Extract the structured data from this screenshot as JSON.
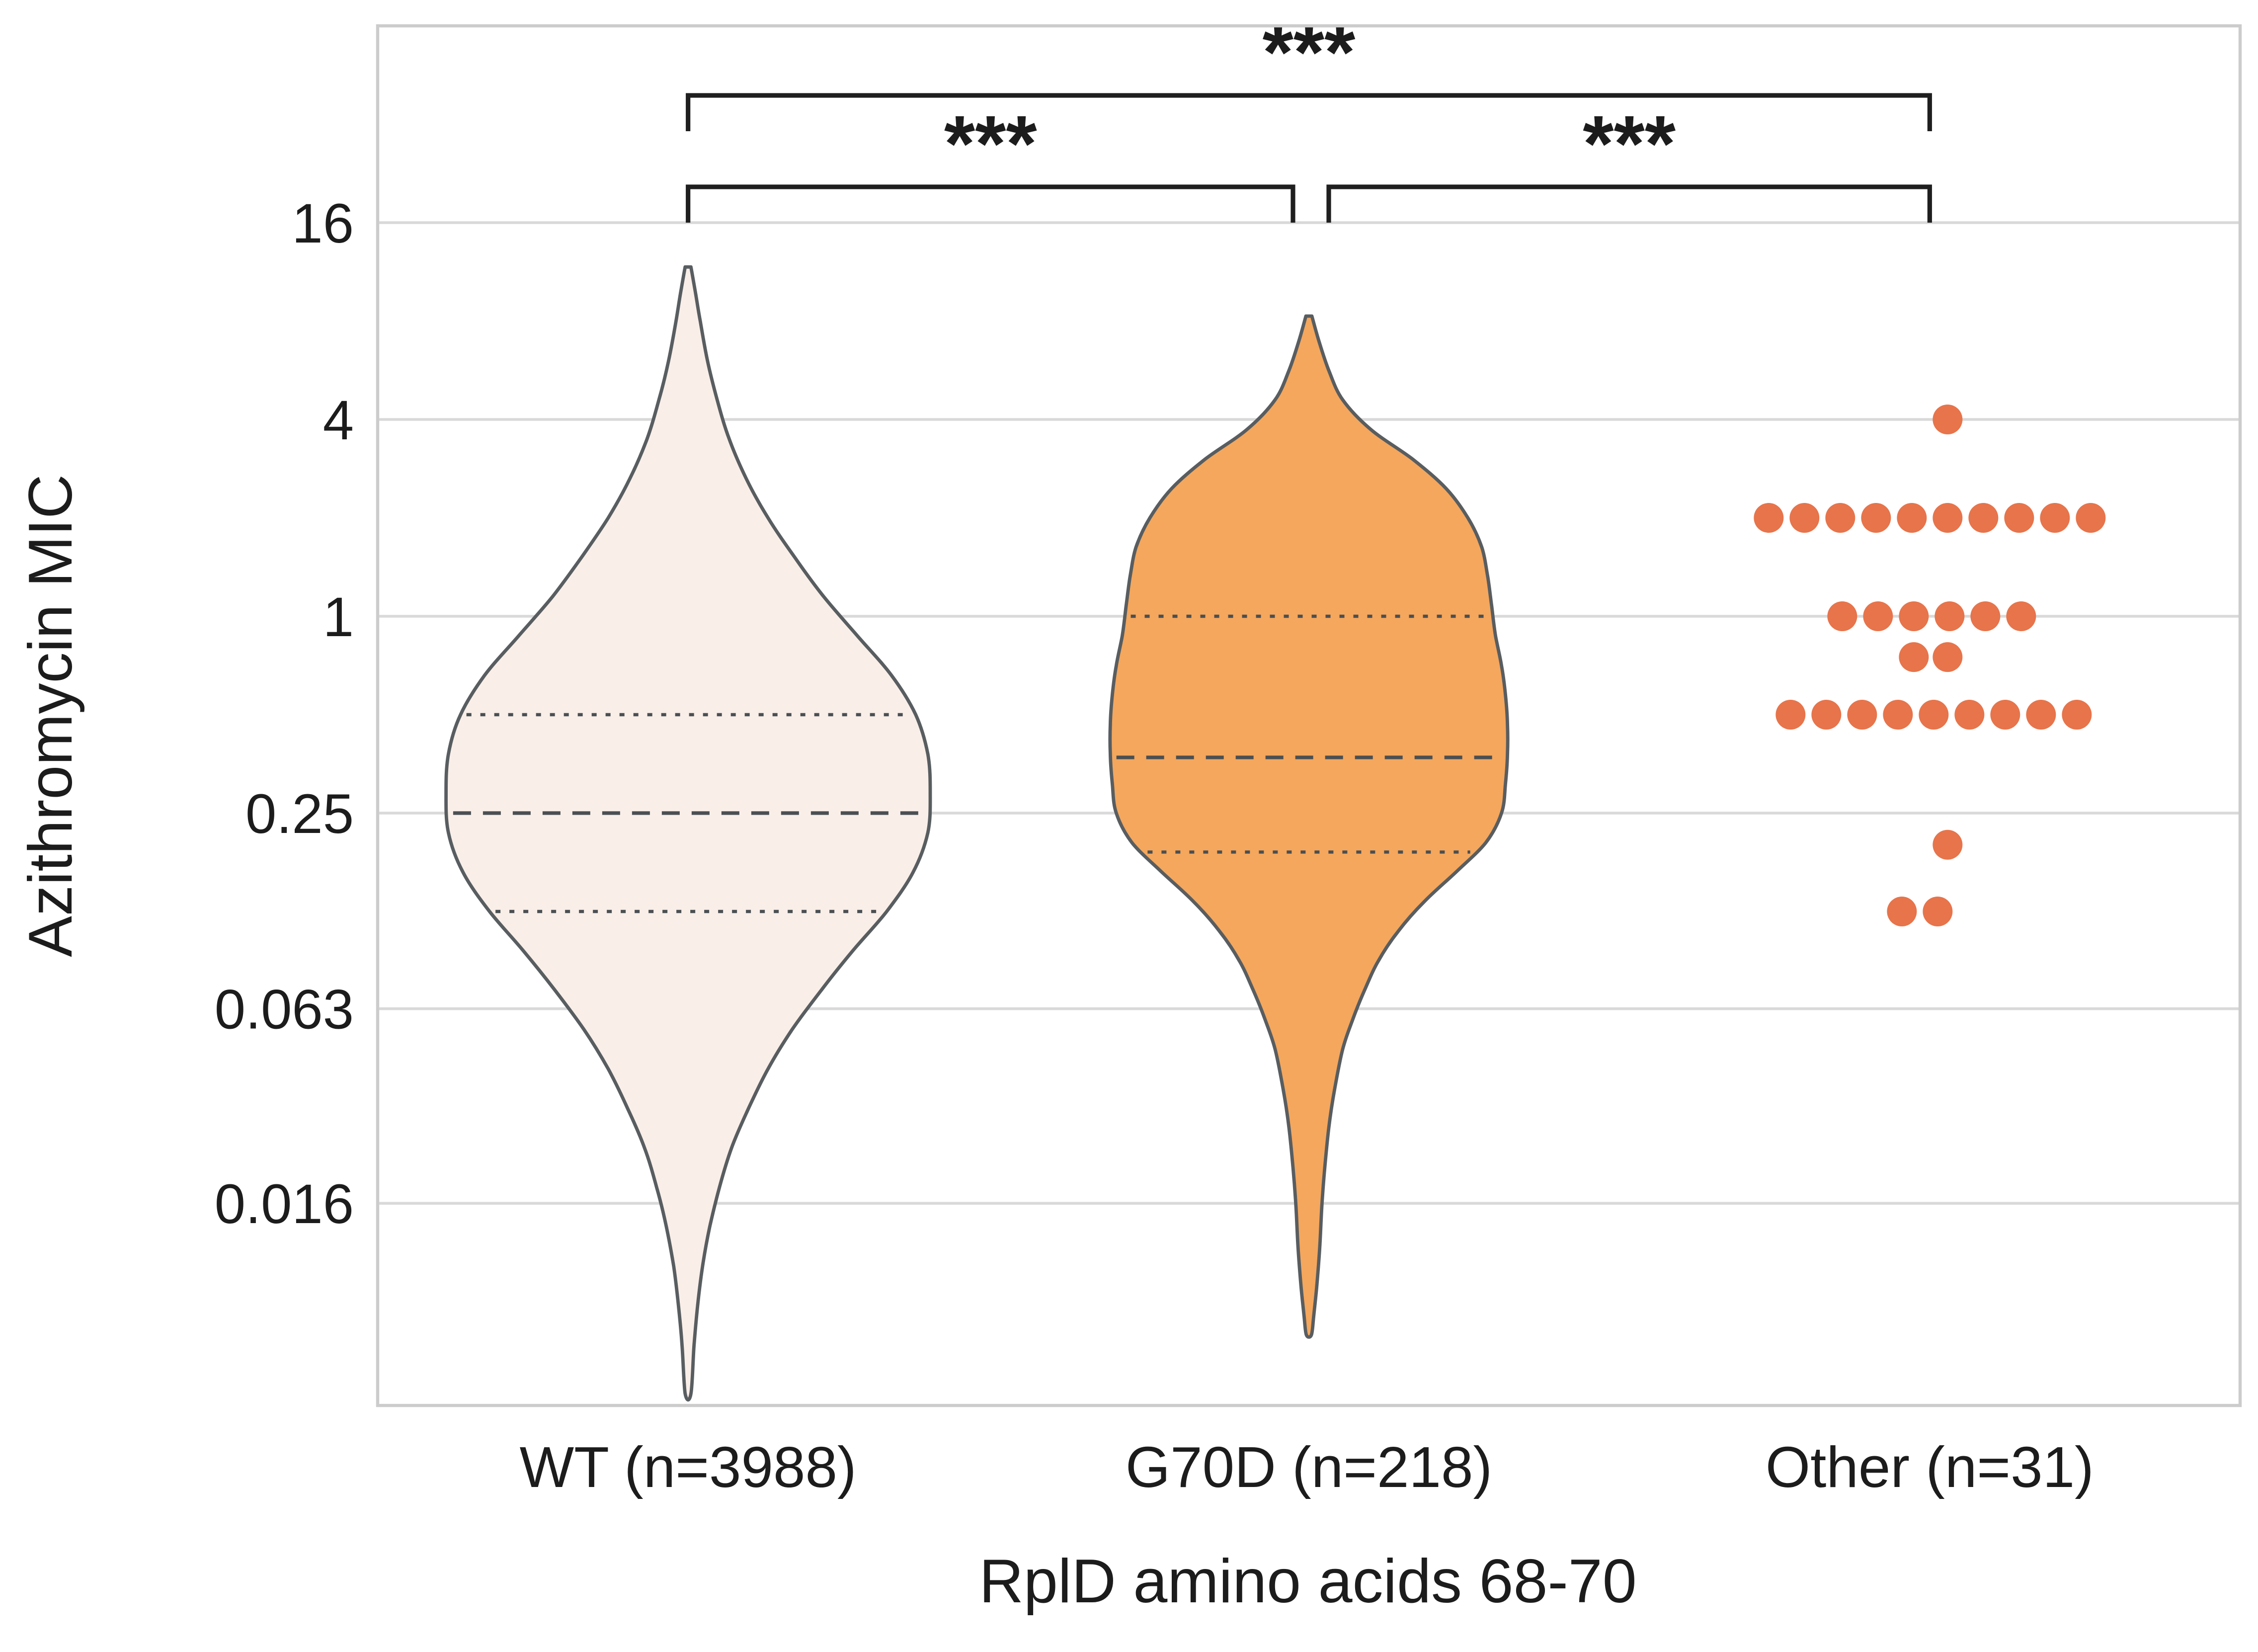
{
  "chart_data": {
    "type": "violin",
    "title": "",
    "xlabel": "RplD amino acids 68-70",
    "ylabel": "Azithromycin MIC",
    "y_scale": "log2",
    "y_ticks": [
      16,
      4,
      1,
      0.25,
      0.063,
      0.016
    ],
    "y_tick_labels": [
      "16",
      "4",
      "1",
      "0.25",
      "0.063",
      "0.016"
    ],
    "grid": "horizontal",
    "colors": {
      "wt_fill": "#F9EEE8",
      "g70d_fill": "#F4A75D",
      "dot": "#E7744B",
      "violin_stroke": "#585d60",
      "inner_line": "#4a4f52",
      "grid_line": "#d9d9d9",
      "border": "#cccccc",
      "bracket": "#1f1f1f",
      "text": "#1c1c1c"
    },
    "categories": [
      {
        "label": "WT (n=3988)",
        "kind": "violin",
        "n": 3988,
        "median": 0.25,
        "q1": 0.125,
        "q3": 0.5,
        "halfwidth_frac_of_slot": 0.39,
        "profile_log2_frac": [
          [
            3.55,
            0.012
          ],
          [
            3.3,
            0.03
          ],
          [
            3.0,
            0.05
          ],
          [
            2.6,
            0.08
          ],
          [
            2.2,
            0.12
          ],
          [
            1.8,
            0.17
          ],
          [
            1.4,
            0.24
          ],
          [
            1.0,
            0.33
          ],
          [
            0.6,
            0.44
          ],
          [
            0.2,
            0.56
          ],
          [
            -0.2,
            0.7
          ],
          [
            -0.6,
            0.84
          ],
          [
            -1.0,
            0.94
          ],
          [
            -1.4,
            0.99
          ],
          [
            -1.8,
            1.0
          ],
          [
            -2.2,
            0.99
          ],
          [
            -2.6,
            0.93
          ],
          [
            -3.0,
            0.82
          ],
          [
            -3.4,
            0.68
          ],
          [
            -3.8,
            0.55
          ],
          [
            -4.2,
            0.43
          ],
          [
            -4.6,
            0.33
          ],
          [
            -5.0,
            0.25
          ],
          [
            -5.4,
            0.18
          ],
          [
            -5.8,
            0.13
          ],
          [
            -6.2,
            0.09
          ],
          [
            -6.6,
            0.06
          ],
          [
            -7.0,
            0.04
          ],
          [
            -7.4,
            0.025
          ],
          [
            -7.9,
            0.012
          ]
        ]
      },
      {
        "label": "G70D (n=218)",
        "kind": "violin",
        "n": 218,
        "median": 0.37,
        "q1": 0.19,
        "q3": 1.0,
        "halfwidth_frac_of_slot": 0.32,
        "profile_log2_frac": [
          [
            3.05,
            0.015
          ],
          [
            2.8,
            0.05
          ],
          [
            2.5,
            0.1
          ],
          [
            2.2,
            0.17
          ],
          [
            1.9,
            0.31
          ],
          [
            1.6,
            0.52
          ],
          [
            1.3,
            0.69
          ],
          [
            1.0,
            0.8
          ],
          [
            0.7,
            0.87
          ],
          [
            0.4,
            0.9
          ],
          [
            0.1,
            0.92
          ],
          [
            -0.2,
            0.94
          ],
          [
            -0.5,
            0.97
          ],
          [
            -0.8,
            0.99
          ],
          [
            -1.1,
            1.0
          ],
          [
            -1.4,
            1.0
          ],
          [
            -1.7,
            0.99
          ],
          [
            -2.0,
            0.97
          ],
          [
            -2.3,
            0.89
          ],
          [
            -2.6,
            0.74
          ],
          [
            -2.9,
            0.58
          ],
          [
            -3.2,
            0.45
          ],
          [
            -3.5,
            0.35
          ],
          [
            -3.8,
            0.28
          ],
          [
            -4.1,
            0.22
          ],
          [
            -4.4,
            0.17
          ],
          [
            -4.8,
            0.13
          ],
          [
            -5.2,
            0.1
          ],
          [
            -5.6,
            0.08
          ],
          [
            -6.0,
            0.065
          ],
          [
            -6.4,
            0.055
          ],
          [
            -6.8,
            0.04
          ],
          [
            -7.1,
            0.025
          ],
          [
            -7.3,
            0.013
          ]
        ]
      },
      {
        "label": "Other (n=31)",
        "kind": "strip",
        "n": 31,
        "rows": [
          {
            "value": 4,
            "offsets": [
              9
            ]
          },
          {
            "value": 2,
            "offsets": [
              -81,
              -63,
              -45,
              -27,
              -9,
              9,
              27,
              45,
              63,
              81
            ]
          },
          {
            "value": 1,
            "offsets": [
              -44,
              -26,
              -8,
              10,
              28,
              46
            ]
          },
          {
            "value": 0.75,
            "offsets": [
              -8,
              9
            ]
          },
          {
            "value": 0.5,
            "offsets": [
              -70,
              -52,
              -34,
              -16,
              2,
              20,
              38,
              56,
              74
            ]
          },
          {
            "value": 0.2,
            "offsets": [
              9
            ]
          },
          {
            "value": 0.125,
            "offsets": [
              -14,
              4
            ]
          }
        ]
      }
    ],
    "significance": [
      {
        "from": 0,
        "to": 2,
        "label": "***",
        "row": "top",
        "trim_start": false,
        "trim_end": false
      },
      {
        "from": 0,
        "to": 1,
        "label": "***",
        "row": "mid",
        "trim_start": false,
        "trim_end": true
      },
      {
        "from": 1,
        "to": 2,
        "label": "***",
        "row": "mid",
        "trim_start": true,
        "trim_end": false
      }
    ]
  }
}
